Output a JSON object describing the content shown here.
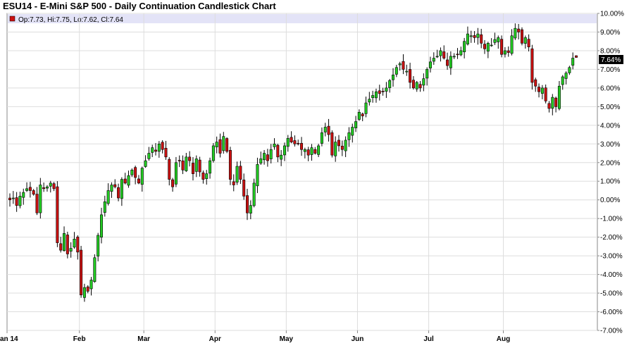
{
  "chart_data": {
    "type": "candlestick",
    "title": "ESU14 - E-Mini S&P 500 - Daily Continuation Candlestick Chart",
    "ohlc_readout": "Op:7.73, Hi:7.75, Lo:7.62, Cl:7.64",
    "last_value_label": "7.64%",
    "last_value": 7.64,
    "ylim": [
      -7,
      10
    ],
    "y_ticks": [
      10,
      9,
      8,
      7,
      6,
      5,
      4,
      3,
      2,
      1,
      0,
      -1,
      -2,
      -3,
      -4,
      -5,
      -6,
      -7
    ],
    "y_tick_labels": [
      "10.00%",
      "9.00%",
      "8.00%",
      "7.00%",
      "6.00%",
      "5.00%",
      "4.00%",
      "3.00%",
      "2.00%",
      "1.00%",
      "0.00%",
      "-1.00%",
      "-2.00%",
      "-3.00%",
      "-4.00%",
      "-5.00%",
      "-6.00%",
      "-7.00%"
    ],
    "x_months": [
      "Jan 14",
      "Feb",
      "Mar",
      "Apr",
      "May",
      "Jun",
      "Jul",
      "Aug"
    ],
    "month_start_index": [
      0,
      21,
      40,
      61,
      82,
      103,
      124,
      146
    ],
    "grid": true,
    "up_color": "#22cc22",
    "down_color": "#cc1111",
    "closes": [
      0.0,
      0.1,
      -0.3,
      0.2,
      0.4,
      0.6,
      0.5,
      0.3,
      -0.7,
      0.8,
      0.6,
      0.7,
      0.9,
      0.6,
      -2.3,
      -2.7,
      -1.8,
      -2.9,
      -2.6,
      -2.1,
      -2.8,
      -5.1,
      -4.7,
      -4.9,
      -4.3,
      -3.1,
      -1.9,
      -0.8,
      -0.1,
      0.5,
      0.8,
      0.7,
      0.1,
      1.1,
      0.9,
      1.3,
      1.6,
      1.2,
      0.9,
      1.7,
      2.1,
      2.5,
      2.8,
      2.6,
      3.0,
      2.7,
      2.3,
      1.1,
      0.7,
      2.0,
      2.1,
      1.6,
      2.3,
      2.1,
      1.4,
      2.2,
      1.5,
      1.1,
      1.4,
      2.1,
      2.9,
      3.1,
      2.5,
      3.4,
      2.6,
      1.1,
      0.8,
      1.8,
      1.1,
      0.2,
      -0.7,
      -0.3,
      0.9,
      1.9,
      2.2,
      2.5,
      2.1,
      2.7,
      3.0,
      2.3,
      2.4,
      2.9,
      3.3,
      3.1,
      3.0,
      3.0,
      2.7,
      2.7,
      2.4,
      2.8,
      2.5,
      2.9,
      3.6,
      3.9,
      3.5,
      2.4,
      3.1,
      2.9,
      2.7,
      3.2,
      3.6,
      3.9,
      4.2,
      4.7,
      4.5,
      5.2,
      5.4,
      5.6,
      5.8,
      5.7,
      5.8,
      6.0,
      6.4,
      6.7,
      7.1,
      7.3,
      7.0,
      6.9,
      6.3,
      6.0,
      6.3,
      6.0,
      6.5,
      7.0,
      7.4,
      7.6,
      7.7,
      8.0,
      7.6,
      7.2,
      7.7,
      7.7,
      7.8,
      8.0,
      8.5,
      8.9,
      8.8,
      8.7,
      8.9,
      8.4,
      8.1,
      8.4,
      8.3,
      8.6,
      8.7,
      7.8,
      8.0,
      7.9,
      8.8,
      9.2,
      9.0,
      8.4,
      8.7,
      8.2,
      6.3,
      6.1,
      5.8,
      6.0,
      5.3,
      4.9,
      5.5,
      5.0,
      6.1,
      6.6,
      6.8,
      7.1,
      7.6,
      7.64
    ]
  }
}
